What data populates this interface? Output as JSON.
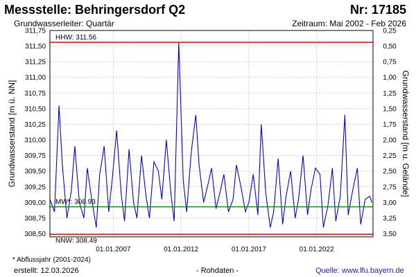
{
  "header": {
    "title": "Messstelle: Behringersdorf Q2",
    "number": "Nr: 17185",
    "aquifer": "Grundwasserleiter: Quartär",
    "period": "Zeitraum: Mai 2002 - Feb 2026"
  },
  "footer": {
    "footnote": "* Abflussjahr (2001-2024)",
    "created": "erstellt:  12.03.2026",
    "rawdata": "- Rohdaten -",
    "source": "Quelle: www.lfu.bayern.de"
  },
  "colors": {
    "series": "#0000dd",
    "limits": "#ee0000",
    "mean": "#009900",
    "grid": "#bbbbbb"
  },
  "chart_data": {
    "type": "line",
    "title": "Messstelle: Behringersdorf Q2",
    "ylabel": "Grundwasserstand [m ü. NN]",
    "y2label": "Grundwasserstand [m u. Gelände]",
    "ylim": [
      308.45,
      311.75
    ],
    "y2lim": [
      3.54,
      0.25
    ],
    "xlim": [
      "2002-05-01",
      "2026-02-28"
    ],
    "grid": true,
    "y_ticks": [
      "308,50",
      "308,75",
      "309,00",
      "309,25",
      "309,50",
      "309,75",
      "310,00",
      "310,25",
      "310,50",
      "310,75",
      "311,00",
      "311,25",
      "311,50",
      "311,75"
    ],
    "y2_ticks": [
      "3,50",
      "3,25",
      "3,00",
      "2,75",
      "2,50",
      "2,25",
      "2,00",
      "1,75",
      "1,50",
      "1,25",
      "1,00",
      "0,75",
      "0,50",
      "0,25"
    ],
    "x_ticks": [
      "01.01.2007",
      "01.01.2012",
      "01.01.2017",
      "01.01.2022"
    ],
    "reference_lines": [
      {
        "label": "HHW: 311.56",
        "value": 311.56
      },
      {
        "label": "MW*: 308.93",
        "value": 308.93
      },
      {
        "label": "NNW: 308.49",
        "value": 308.49
      }
    ],
    "series": [
      {
        "x": [
          "2002-05",
          "2002-09",
          "2003-01",
          "2003-04",
          "2003-08",
          "2003-12",
          "2004-03",
          "2004-07",
          "2004-11",
          "2005-02",
          "2005-06",
          "2005-10",
          "2006-01",
          "2006-05",
          "2006-09",
          "2006-12",
          "2007-04",
          "2007-08",
          "2007-11",
          "2008-03",
          "2008-07",
          "2008-10",
          "2009-02",
          "2009-06",
          "2009-09",
          "2010-01",
          "2010-05",
          "2010-08",
          "2010-12",
          "2011-04",
          "2011-07",
          "2011-11",
          "2012-03",
          "2012-06",
          "2012-10",
          "2013-02",
          "2013-05",
          "2013-09",
          "2014-01",
          "2014-04",
          "2014-08",
          "2014-12",
          "2015-03",
          "2015-07",
          "2015-11",
          "2016-02",
          "2016-06",
          "2016-10",
          "2017-01",
          "2017-05",
          "2017-09",
          "2017-12",
          "2018-04",
          "2018-08",
          "2018-11",
          "2019-03",
          "2019-07",
          "2019-10",
          "2020-02",
          "2020-06",
          "2020-09",
          "2021-01",
          "2021-05",
          "2021-08",
          "2021-12",
          "2022-04",
          "2022-07",
          "2022-11",
          "2023-03",
          "2023-06",
          "2023-10",
          "2024-02",
          "2024-05",
          "2024-09",
          "2025-01",
          "2025-04",
          "2025-08",
          "2025-12",
          "2026-02"
        ],
        "values": [
          309.05,
          308.85,
          310.55,
          309.6,
          308.75,
          309.2,
          309.9,
          309.0,
          308.75,
          309.55,
          309.05,
          308.6,
          309.45,
          309.9,
          308.85,
          309.35,
          310.15,
          309.15,
          308.7,
          309.85,
          309.0,
          308.75,
          309.75,
          309.1,
          308.75,
          309.65,
          309.5,
          309.05,
          310.0,
          309.15,
          308.7,
          311.56,
          309.35,
          308.85,
          309.8,
          310.4,
          309.6,
          309.0,
          309.3,
          309.55,
          308.9,
          309.2,
          309.45,
          308.85,
          309.05,
          309.6,
          309.25,
          308.85,
          309.0,
          309.45,
          308.8,
          310.25,
          309.15,
          308.6,
          308.85,
          309.7,
          308.65,
          309.1,
          309.5,
          308.75,
          309.05,
          309.75,
          308.8,
          309.2,
          309.55,
          309.45,
          308.6,
          308.95,
          309.55,
          308.7,
          309.1,
          310.4,
          308.8,
          309.2,
          309.55,
          308.65,
          309.05,
          309.1,
          309.0
        ]
      }
    ]
  }
}
